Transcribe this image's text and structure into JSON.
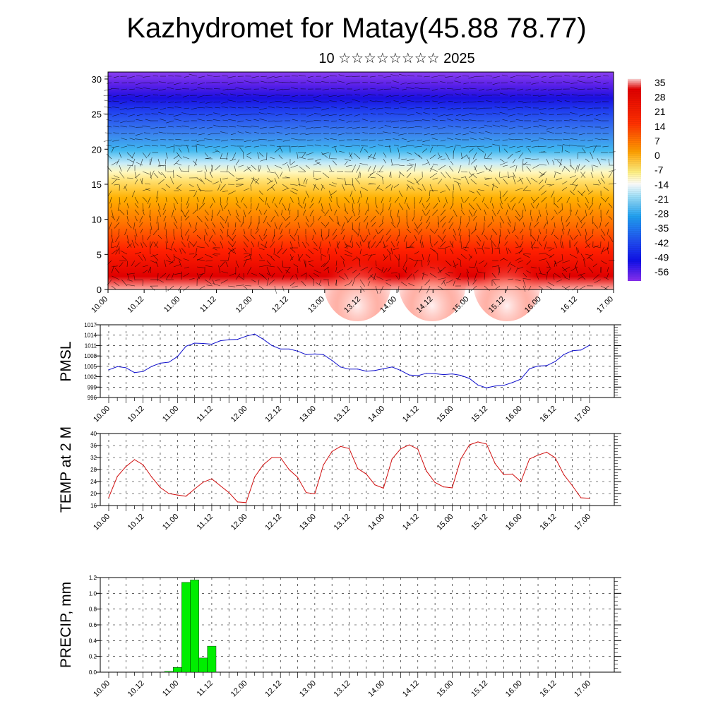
{
  "title": "Kazhydromet for Matay(45.88 78.77)",
  "subtitle": "10 ☆☆☆☆☆☆☆☆ 2025",
  "x_tick_labels": [
    "10.00",
    "10.12",
    "11.00",
    "11.12",
    "12.00",
    "12.12",
    "13.00",
    "13.12",
    "14.00",
    "14.12",
    "15.00",
    "15.12",
    "16.00",
    "16.12",
    "17.00"
  ],
  "colors": {
    "pmsl_line": "#1010cc",
    "temp_line": "#d01010",
    "precip_bar": "#00ee00",
    "grid": "#000000"
  },
  "chart_data": [
    {
      "type": "heatmap",
      "title": "",
      "x_range": [
        "10.00",
        "17.00"
      ],
      "ylim": [
        0,
        31
      ],
      "y_ticks": [
        0,
        5,
        10,
        15,
        20,
        25,
        30
      ],
      "colorbar_labels": [
        "35",
        "28",
        "21",
        "14",
        "7",
        "0",
        "-7",
        "-14",
        "-21",
        "-28",
        "-35",
        "-42",
        "-49",
        "-56"
      ],
      "description_layers": "temperature shading with wind vectors"
    },
    {
      "type": "line",
      "ylabel": "PMSL",
      "ylim": [
        996,
        1017
      ],
      "y_ticks": [
        996,
        999,
        1002,
        1005,
        1008,
        1011,
        1014,
        1017
      ],
      "grid": true,
      "series": [
        {
          "values": [
            1004.0,
            1004.9,
            1004.6,
            1003.2,
            1003.5,
            1005.0,
            1005.9,
            1006.2,
            1007.8,
            1010.8,
            1011.7,
            1011.6,
            1011.4,
            1012.4,
            1012.7,
            1012.8,
            1013.7,
            1014.3,
            1012.8,
            1011.0,
            1010.0,
            1010.0,
            1009.4,
            1008.4,
            1008.6,
            1008.4,
            1006.7,
            1004.8,
            1004.2,
            1004.2,
            1003.6,
            1003.8,
            1004.3,
            1004.8,
            1003.8,
            1002.5,
            1002.3,
            1003.0,
            1002.9,
            1002.6,
            1002.8,
            1002.4,
            1001.5,
            999.6,
            998.8,
            999.3,
            999.5,
            1000.3,
            1001.3,
            1004.3,
            1005.1,
            1005.2,
            1006.4,
            1008.4,
            1009.5,
            1009.7,
            1011.1
          ]
        }
      ]
    },
    {
      "type": "line",
      "ylabel": "TEMP at 2 M",
      "ylim": [
        16,
        40
      ],
      "y_ticks": [
        16,
        20,
        24,
        28,
        32,
        36,
        40
      ],
      "grid": true,
      "series": [
        {
          "values": [
            18.7,
            25.7,
            29.0,
            31.3,
            29.6,
            25.5,
            22.0,
            20.0,
            19.5,
            19.1,
            21.5,
            23.8,
            24.9,
            22.6,
            20.3,
            17.2,
            17.0,
            25.5,
            29.6,
            32.0,
            32.0,
            28.0,
            25.4,
            20.3,
            19.9,
            29.5,
            34.0,
            35.7,
            35.0,
            28.3,
            26.5,
            22.9,
            21.8,
            31.5,
            34.9,
            36.2,
            34.8,
            27.5,
            23.7,
            22.2,
            21.9,
            31.5,
            36.2,
            37.2,
            36.5,
            30.0,
            26.3,
            26.5,
            23.9,
            31.5,
            32.8,
            33.8,
            31.9,
            26.3,
            22.6,
            18.6,
            18.4
          ]
        }
      ]
    },
    {
      "type": "bar",
      "ylabel": "PRECIP, mm",
      "ylim": [
        0,
        1.2
      ],
      "y_ticks": [
        "0.0",
        "0.2",
        "0.4",
        "0.6",
        "0.8",
        "1.0",
        "1.2"
      ],
      "grid": true,
      "values": [
        0,
        0,
        0,
        0,
        0,
        0,
        0,
        0.01,
        0.06,
        1.14,
        1.17,
        0.18,
        0.33,
        0,
        0,
        0,
        0,
        0,
        0,
        0,
        0,
        0,
        0,
        0,
        0,
        0,
        0,
        0,
        0,
        0,
        0,
        0,
        0,
        0,
        0,
        0,
        0,
        0,
        0,
        0,
        0,
        0,
        0,
        0,
        0,
        0,
        0,
        0,
        0,
        0,
        0,
        0,
        0,
        0,
        0,
        0,
        0
      ]
    }
  ]
}
